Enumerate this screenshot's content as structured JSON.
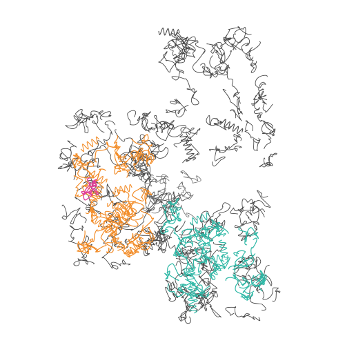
{
  "image": {
    "description_visible_text": "",
    "background_color": "#ffffff"
  },
  "colors": {
    "backbone": "#4a4a4a",
    "backbone_light": "#6b6b6b",
    "domain_orange": "#f28c28",
    "domain_teal": "#2fb8a6",
    "highlight_magenta": "#e0409a"
  },
  "regions": [
    {
      "name": "top-lobe",
      "color_key": "backbone"
    },
    {
      "name": "left-lobe-orange",
      "color_key": "domain_orange"
    },
    {
      "name": "bottom-right-lobe-teal",
      "color_key": "domain_teal"
    },
    {
      "name": "center-link",
      "color_key": "backbone"
    }
  ]
}
